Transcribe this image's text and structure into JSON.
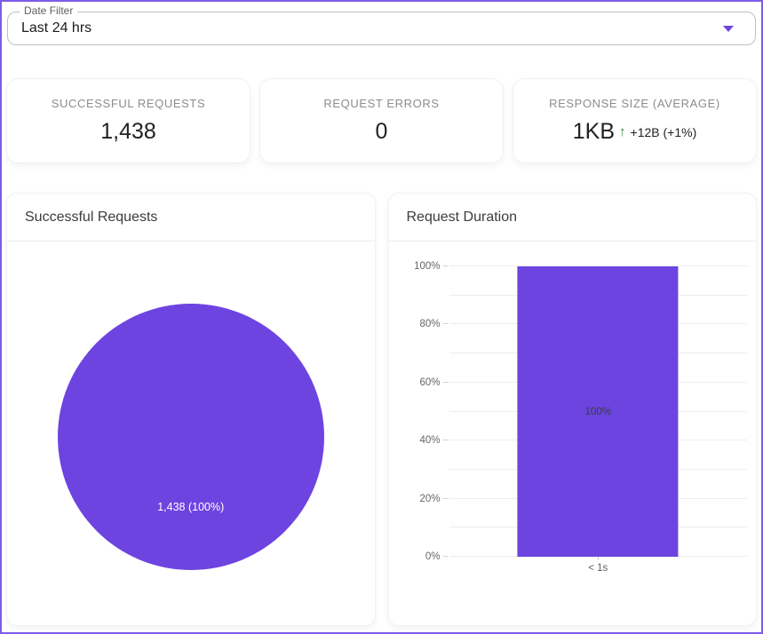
{
  "page": {
    "accent_color": "#6d44e0",
    "border_color": "#7d5ce8",
    "background_color": "#ffffff"
  },
  "date_filter": {
    "label": "Date Filter",
    "value": "Last 24 hrs",
    "arrow_icon": "caret-down",
    "arrow_color": "#6d44e0"
  },
  "stats": [
    {
      "label": "SUCCESSFUL REQUESTS",
      "value": "1,438"
    },
    {
      "label": "REQUEST ERRORS",
      "value": "0"
    },
    {
      "label": "RESPONSE SIZE (AVERAGE)",
      "value": "1KB",
      "delta_arrow": "↑",
      "delta_text": "+12B (+1%)",
      "delta_direction": "up",
      "delta_color": "#2e7d32"
    }
  ],
  "chart_cards": {
    "pie_card_title": "Successful Requests",
    "bar_card_title": "Request Duration"
  },
  "chart_data": [
    {
      "type": "pie",
      "title": "Successful Requests",
      "labels": [
        "Successful Requests"
      ],
      "values": [
        1438
      ],
      "percentages": [
        100
      ],
      "slice_label": "1,438 (100%)",
      "colors": [
        "#6d44e0"
      ],
      "legend_position": "none"
    },
    {
      "type": "bar",
      "title": "Request Duration",
      "categories": [
        "< 1s"
      ],
      "values": [
        100
      ],
      "value_labels": [
        "100%"
      ],
      "xlabel": "",
      "ylabel": "",
      "ylim": [
        0,
        100
      ],
      "ytick_labels": [
        "0%",
        "20%",
        "40%",
        "60%",
        "80%",
        "100%"
      ],
      "ytick_labeled_interval": 20,
      "ytick_grid_interval": 10,
      "grid": true,
      "bar_color": "#6d44e0",
      "datalabel_color": "#373d3f"
    }
  ]
}
